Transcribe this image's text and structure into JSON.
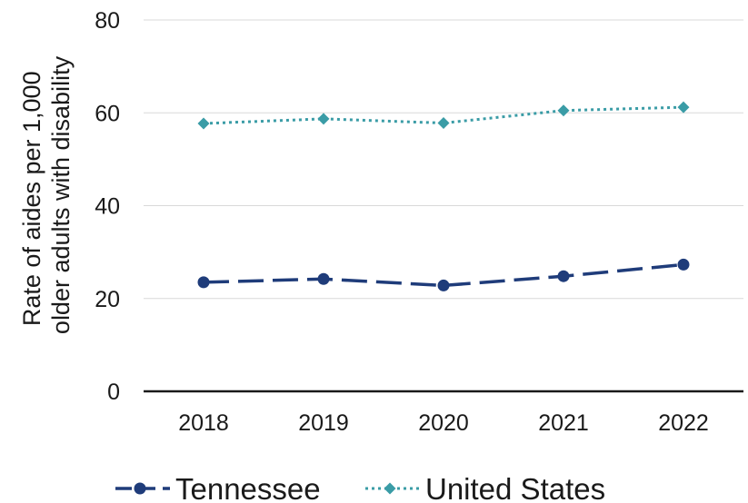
{
  "chart_data": {
    "type": "line",
    "categories": [
      "2018",
      "2019",
      "2020",
      "2021",
      "2022"
    ],
    "series": [
      {
        "name": "Tennessee",
        "values": [
          23.5,
          24.2,
          22.8,
          24.8,
          27.3
        ],
        "color": "#1f3c7a",
        "line_style": "dashed",
        "marker": "circle"
      },
      {
        "name": "United States",
        "values": [
          57.7,
          58.7,
          57.8,
          60.5,
          61.2
        ],
        "color": "#3a9ca6",
        "line_style": "dotted",
        "marker": "diamond"
      }
    ],
    "title": "",
    "xlabel": "",
    "ylabel_lines": [
      "Rate of aides per 1,000",
      "older adults with disability"
    ],
    "ylim": [
      0,
      80
    ],
    "yticks": [
      "0",
      "20",
      "40",
      "60",
      "80"
    ],
    "grid": true,
    "legend_position": "bottom"
  }
}
